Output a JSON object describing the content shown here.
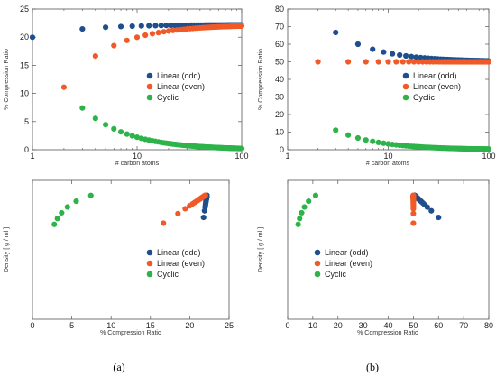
{
  "captions": [
    "(a)",
    "(b)"
  ],
  "chart_data": [
    {
      "type": "scatter",
      "title": "",
      "xlabel": "# carbon atoms",
      "ylabel": "% Compression Ratio",
      "xscale": "log",
      "xlim": [
        1,
        100
      ],
      "ylim": [
        0,
        25
      ],
      "xticks": [
        1,
        10,
        100
      ],
      "xtick_labels": [
        "1",
        "10",
        "100"
      ],
      "yticks": [
        0,
        5,
        10,
        15,
        20,
        25
      ],
      "ytick_labels": [
        "0",
        "5",
        "10",
        "15",
        "20",
        "25"
      ],
      "grid": false,
      "legend_position": "right-middle",
      "colors": {
        "odd": "#1f4e8c",
        "even": "#f05a28",
        "cyclic": "#2db34a"
      },
      "series": [
        {
          "name": "Linear (odd)",
          "curve": "odd_x",
          "x_range": [
            1,
            99
          ],
          "x_step": 2
        },
        {
          "name": "Linear (even)",
          "curve": "even_x",
          "x_range": [
            2,
            100
          ],
          "x_step": 2
        },
        {
          "name": "Cyclic",
          "curve": "cyclic_x",
          "x_range": [
            3,
            100
          ],
          "x_step": 1
        }
      ]
    },
    {
      "type": "scatter",
      "title": "",
      "xlabel": "# carbon atoms",
      "ylabel": "% Compression Ratio",
      "xscale": "log",
      "xlim": [
        1,
        100
      ],
      "ylim": [
        0,
        80
      ],
      "xticks": [
        1,
        10,
        100
      ],
      "xtick_labels": [
        "1",
        "10",
        "100"
      ],
      "yticks": [
        0,
        10,
        20,
        30,
        40,
        50,
        60,
        70,
        80
      ],
      "ytick_labels": [
        "0",
        "10",
        "20",
        "30",
        "40",
        "50",
        "60",
        "70",
        "80"
      ],
      "grid": false,
      "legend_position": "right-middle",
      "colors": {
        "odd": "#1f4e8c",
        "even": "#f05a28",
        "cyclic": "#2db34a"
      },
      "series": [
        {
          "name": "Linear (odd)",
          "curve": "odd_x",
          "x_range": [
            3,
            99
          ],
          "x_step": 2
        },
        {
          "name": "Linear (even)",
          "curve": "even_x",
          "x_range": [
            2,
            100
          ],
          "x_step": 2
        },
        {
          "name": "Cyclic",
          "curve": "cyclic_x",
          "x_range": [
            3,
            100
          ],
          "x_step": 1
        }
      ]
    },
    {
      "type": "scatter",
      "title": "",
      "xlabel": "% Compression Ratio",
      "ylabel": "Density [ g / ml ]",
      "xlim": [
        0,
        25
      ],
      "ylim": [
        0.3,
        0.9
      ],
      "xticks": [
        0,
        5,
        10,
        15,
        20,
        25
      ],
      "xtick_labels": [
        "0",
        "5",
        "10",
        "15",
        "20",
        "25"
      ],
      "yticks": [],
      "ytick_labels": [],
      "grid": false,
      "legend_position": "bottom-right",
      "colors": {
        "odd": "#1f4e8c",
        "even": "#f05a28",
        "cyclic": "#2db34a"
      },
      "series": [
        {
          "name": "Linear (odd)",
          "curve": "odd_xy",
          "n_range": [
            5,
            99
          ],
          "n_step": 2
        },
        {
          "name": "Linear (even)",
          "curve": "even_xy",
          "n_range": [
            4,
            100
          ],
          "n_step": 2
        },
        {
          "name": "Cyclic",
          "curve": "cyclic_xy",
          "n_range": [
            3,
            8
          ],
          "n_step": 1
        }
      ]
    },
    {
      "type": "scatter",
      "title": "",
      "xlabel": "% Compression Ratio",
      "ylabel": "Density [ g / ml ]",
      "xlim": [
        0,
        80
      ],
      "ylim": [
        0.3,
        0.9
      ],
      "xticks": [
        0,
        10,
        20,
        30,
        40,
        50,
        60,
        70,
        80
      ],
      "xtick_labels": [
        "0",
        "10",
        "20",
        "30",
        "40",
        "50",
        "60",
        "70",
        "80"
      ],
      "yticks": [],
      "ytick_labels": [],
      "grid": false,
      "legend_position": "bottom-left",
      "colors": {
        "odd": "#1f4e8c",
        "even": "#f05a28",
        "cyclic": "#2db34a"
      },
      "series": [
        {
          "name": "Linear (odd)",
          "curve": "odd_xy",
          "n_range": [
            5,
            99
          ],
          "n_step": 2
        },
        {
          "name": "Linear (even)",
          "curve": "even_xy",
          "n_range": [
            4,
            100
          ],
          "n_step": 2
        },
        {
          "name": "Cyclic",
          "curve": "cyclic_xy",
          "n_range": [
            3,
            8
          ],
          "n_step": 1
        }
      ]
    }
  ]
}
